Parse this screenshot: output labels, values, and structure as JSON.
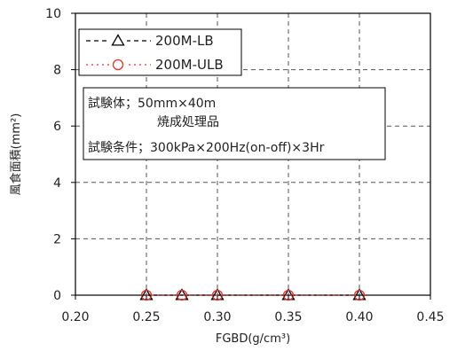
{
  "chart_data": {
    "type": "scatter",
    "xlabel": "FGBD(g/cm³)",
    "ylabel": "風食面積(mm²)",
    "xlim": [
      0.2,
      0.45
    ],
    "ylim": [
      0,
      10
    ],
    "x_ticks": [
      "0.20",
      "0.25",
      "0.30",
      "0.35",
      "0.40",
      "0.45"
    ],
    "y_ticks": [
      "0",
      "2",
      "4",
      "6",
      "8",
      "10"
    ],
    "grid": true,
    "legend_position": "top-left",
    "series": [
      {
        "name": "200M-LB",
        "marker": "triangle",
        "line_style": "dashed",
        "color": "#000000",
        "points": [
          {
            "x": 0.25,
            "y": 0
          },
          {
            "x": 0.275,
            "y": 0
          },
          {
            "x": 0.3,
            "y": 0
          },
          {
            "x": 0.35,
            "y": 0
          },
          {
            "x": 0.4,
            "y": 0
          }
        ]
      },
      {
        "name": "200M-ULB",
        "marker": "circle",
        "line_style": "dotted",
        "color": "#e8312b",
        "points": [
          {
            "x": 0.25,
            "y": 0
          },
          {
            "x": 0.275,
            "y": 0
          },
          {
            "x": 0.3,
            "y": 0
          },
          {
            "x": 0.35,
            "y": 0
          },
          {
            "x": 0.4,
            "y": 0
          }
        ]
      }
    ],
    "annotation": {
      "line1": "試験体；50mm×40m",
      "line2": "焼成処理品",
      "line3": "試験条件；300kPa×200Hz(on-off)×3Hr"
    }
  }
}
